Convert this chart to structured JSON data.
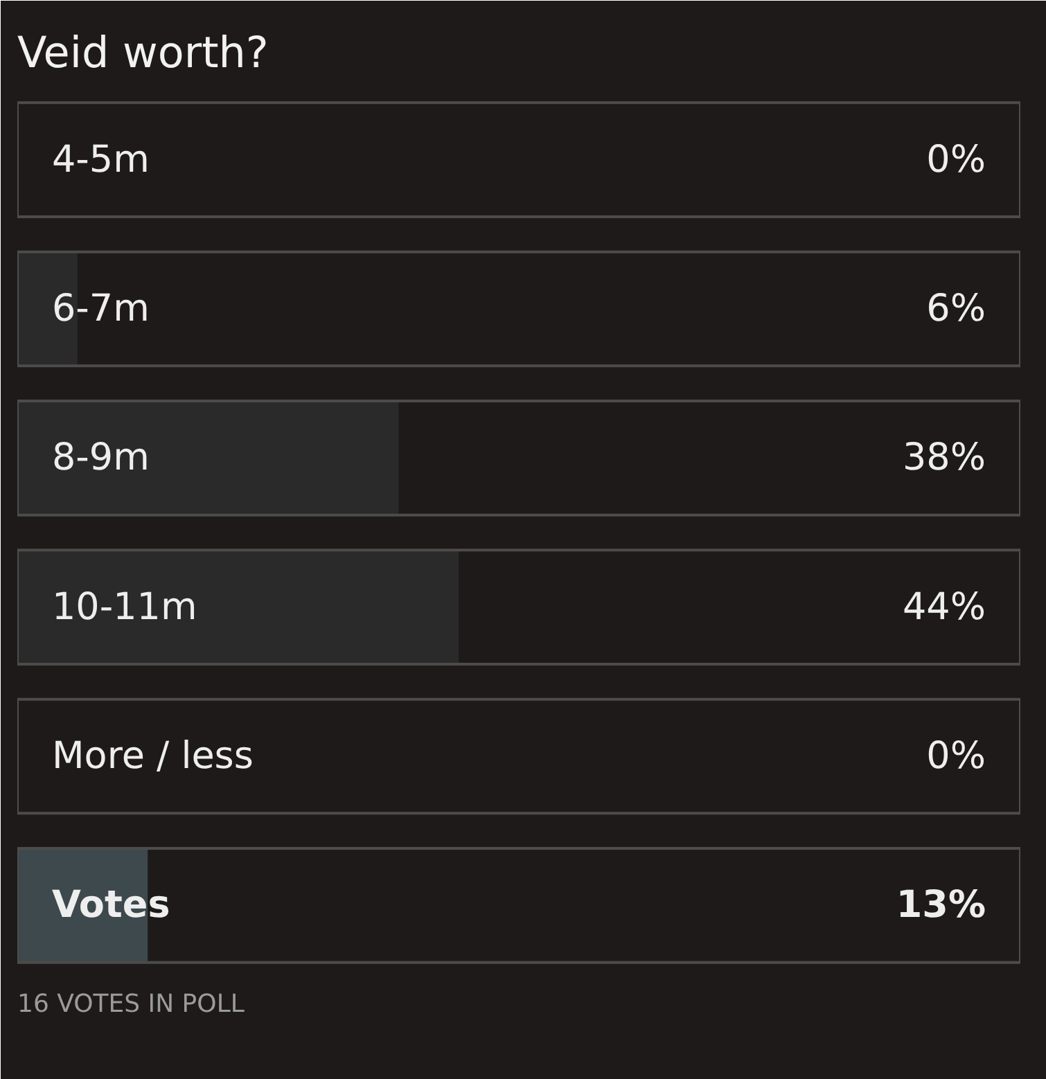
{
  "chart_data": {
    "type": "bar",
    "orientation": "horizontal",
    "title": "Veid worth?",
    "categories": [
      "4-5m",
      "6-7m",
      "8-9m",
      "10-11m",
      "More / less",
      "Votes"
    ],
    "values": [
      0,
      6,
      38,
      44,
      0,
      13
    ],
    "colors": [
      "#2a2a2a",
      "#2a2a2a",
      "#2a2a2a",
      "#2a2a2a",
      "#2a2a2a",
      "#3d494c"
    ],
    "value_labels": [
      "0%",
      "6%",
      "38%",
      "44%",
      "0%",
      "13%"
    ],
    "xlim": [
      0,
      100
    ],
    "tick_labels": "y",
    "annotations": [
      "16 VOTES IN POLL"
    ]
  }
}
